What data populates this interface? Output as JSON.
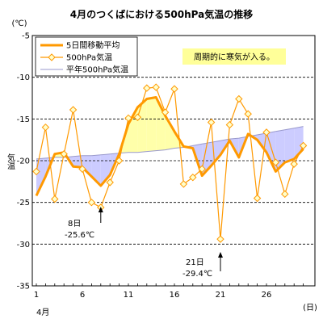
{
  "chart_data": {
    "type": "line",
    "title": "4月のつくばにおける500hPa気温の推移",
    "ylabel": "気温",
    "yunit": "(℃)",
    "xunit": "(日)",
    "month_label": "4月",
    "ylim": [
      -35,
      -5
    ],
    "yticks": [
      -5,
      -10,
      -15,
      -20,
      -25,
      -30,
      -35
    ],
    "xlim": [
      1,
      30
    ],
    "xticks": [
      1,
      6,
      11,
      16,
      21,
      26
    ],
    "grid": "horizontal-dashed",
    "legend": {
      "placement": "top-left",
      "items": [
        {
          "label": "5日間移動平均",
          "color": "#ff9900",
          "style": "thick-line"
        },
        {
          "label": "500hPa気温",
          "color": "#ff9900",
          "style": "line-diamond"
        },
        {
          "label": "平年500hPa気温",
          "color": "#9999cc",
          "style": "thin-line"
        }
      ]
    },
    "annotations": [
      {
        "text": "周期的に寒気が入る。",
        "style": "yellow-box"
      },
      {
        "day_label": "8日",
        "value_label": "-25.6℃",
        "x": 8,
        "y": -25.6
      },
      {
        "day_label": "21日",
        "value_label": "-29.4℃",
        "x": 21,
        "y": -29.4
      }
    ],
    "colors": {
      "moving_avg": "#ff9900",
      "daily": "#ff9900",
      "marker_fill": "#ffffcc",
      "normal": "#9999cc",
      "fill_warm": "#ffffaa",
      "fill_cold": "#ccccff",
      "label_box": "#ffff99"
    },
    "x": [
      1,
      2,
      3,
      4,
      5,
      6,
      7,
      8,
      9,
      10,
      11,
      12,
      13,
      14,
      15,
      16,
      17,
      18,
      19,
      20,
      21,
      22,
      23,
      24,
      25,
      26,
      27,
      28,
      29,
      30
    ],
    "series": [
      {
        "name": "500hPa気温",
        "values": [
          -21.3,
          -16.0,
          -24.6,
          -19.2,
          -13.9,
          -21.0,
          -25.0,
          -25.6,
          -22.6,
          -20.0,
          -14.9,
          -14.8,
          -11.3,
          -11.2,
          -14.2,
          -11.4,
          -22.8,
          -22.0,
          -21.0,
          -15.4,
          -29.4,
          -15.7,
          -12.6,
          -14.4,
          -24.5,
          -16.6,
          -20.2,
          -24.0,
          -20.4,
          -18.2
        ]
      },
      {
        "name": "5日間移動平均",
        "values": [
          -24.2,
          -21.9,
          -19.2,
          -19.0,
          -20.7,
          -20.8,
          -21.9,
          -23.0,
          -21.7,
          -19.2,
          -15.6,
          -13.6,
          -12.6,
          -12.4,
          -14.6,
          -16.5,
          -18.3,
          -18.5,
          -21.8,
          -20.6,
          -19.3,
          -17.6,
          -19.6,
          -16.8,
          -17.5,
          -19.0,
          -21.3,
          -20.2,
          -19.8,
          -18.6
        ]
      },
      {
        "name": "平年500hPa気温",
        "values": [
          -19.8,
          -19.7,
          -19.6,
          -19.6,
          -19.5,
          -19.4,
          -19.4,
          -19.3,
          -19.2,
          -19.1,
          -19.0,
          -19.0,
          -18.9,
          -18.8,
          -18.7,
          -18.5,
          -18.4,
          -18.2,
          -18.0,
          -17.8,
          -17.6,
          -17.4,
          -17.3,
          -17.1,
          -16.9,
          -16.7,
          -16.5,
          -16.3,
          -16.1,
          -15.9
        ]
      }
    ]
  }
}
